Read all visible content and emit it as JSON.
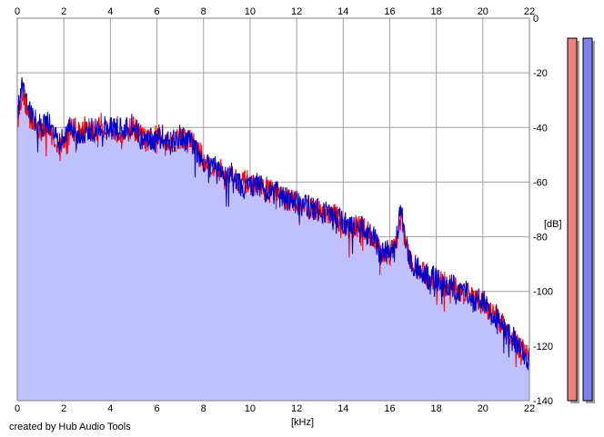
{
  "credit": "created by Hub Audio Tools",
  "colors": {
    "fill": "#c0c0fe",
    "left_channel": "#ff0000",
    "right_channel": "#0000cc",
    "grid": "#a0a0a0",
    "meter_left": "#f08080",
    "meter_right": "#8080f0"
  },
  "chart_data": {
    "type": "area",
    "xlabel": "[kHz]",
    "ylabel": "[dB]",
    "xlim": [
      0,
      22
    ],
    "ylim": [
      -140,
      0
    ],
    "x_ticks": [
      "0",
      "2",
      "4",
      "6",
      "8",
      "10",
      "12",
      "14",
      "16",
      "18",
      "20",
      "22"
    ],
    "y_ticks": [
      "0",
      "-20",
      "-40",
      "-60",
      "-80",
      "-100",
      "-120",
      "-140"
    ],
    "grid": true,
    "series": [
      {
        "color": "#ff0000",
        "x": [
          0,
          0.2,
          0.5,
          0.8,
          1.0,
          1.3,
          1.6,
          1.8,
          2.0,
          2.3,
          2.6,
          3.0,
          3.3,
          3.6,
          4.0,
          4.3,
          4.6,
          5.0,
          5.3,
          5.6,
          6.0,
          6.3,
          6.6,
          7.0,
          7.3,
          7.6,
          8.0,
          8.3,
          8.6,
          9.0,
          9.3,
          9.6,
          10.0,
          10.3,
          10.6,
          11.0,
          11.3,
          11.6,
          12.0,
          12.3,
          12.6,
          13.0,
          13.3,
          13.6,
          14.0,
          14.3,
          14.6,
          15.0,
          15.3,
          15.6,
          16.0,
          16.2,
          16.4,
          16.5,
          16.6,
          16.8,
          17.0,
          17.3,
          17.6,
          18.0,
          18.3,
          18.6,
          19.0,
          19.3,
          19.6,
          20.0,
          20.3,
          20.6,
          21.0,
          21.3,
          21.6,
          22.0
        ],
        "y": [
          -38,
          -27,
          -35,
          -40,
          -41,
          -39,
          -44,
          -47,
          -45,
          -40,
          -41,
          -40,
          -42,
          -39,
          -41,
          -40,
          -42,
          -40,
          -43,
          -45,
          -43,
          -44,
          -45,
          -44,
          -44,
          -46,
          -52,
          -54,
          -55,
          -57,
          -58,
          -60,
          -60,
          -62,
          -62,
          -63,
          -65,
          -66,
          -68,
          -68,
          -70,
          -70,
          -72,
          -72,
          -75,
          -76,
          -76,
          -78,
          -80,
          -86,
          -86,
          -84,
          -76,
          -72,
          -80,
          -86,
          -90,
          -93,
          -94,
          -96,
          -97,
          -98,
          -100,
          -101,
          -102,
          -104,
          -107,
          -110,
          -114,
          -117,
          -121,
          -124
        ]
      },
      {
        "color": "#0000cc",
        "x": [
          0,
          0.2,
          0.5,
          0.8,
          1.0,
          1.3,
          1.6,
          1.8,
          2.0,
          2.3,
          2.6,
          3.0,
          3.3,
          3.6,
          4.0,
          4.3,
          4.6,
          5.0,
          5.3,
          5.6,
          6.0,
          6.3,
          6.6,
          7.0,
          7.3,
          7.6,
          8.0,
          8.3,
          8.6,
          9.0,
          9.3,
          9.6,
          10.0,
          10.3,
          10.6,
          11.0,
          11.3,
          11.6,
          12.0,
          12.3,
          12.6,
          13.0,
          13.3,
          13.6,
          14.0,
          14.3,
          14.6,
          15.0,
          15.3,
          15.6,
          16.0,
          16.2,
          16.4,
          16.5,
          16.6,
          16.8,
          17.0,
          17.3,
          17.6,
          18.0,
          18.3,
          18.6,
          19.0,
          19.3,
          19.6,
          20.0,
          20.3,
          20.6,
          21.0,
          21.3,
          21.6,
          22.0
        ],
        "y": [
          -36,
          -22,
          -33,
          -38,
          -40,
          -38,
          -43,
          -46,
          -44,
          -40,
          -42,
          -41,
          -41,
          -40,
          -40,
          -41,
          -41,
          -39,
          -44,
          -44,
          -44,
          -43,
          -46,
          -43,
          -45,
          -47,
          -53,
          -55,
          -54,
          -58,
          -57,
          -61,
          -61,
          -61,
          -63,
          -64,
          -64,
          -67,
          -67,
          -69,
          -69,
          -71,
          -71,
          -73,
          -74,
          -77,
          -75,
          -79,
          -79,
          -87,
          -85,
          -85,
          -75,
          -68,
          -79,
          -87,
          -91,
          -92,
          -95,
          -95,
          -98,
          -97,
          -101,
          -100,
          -103,
          -103,
          -108,
          -109,
          -115,
          -116,
          -122,
          -125
        ]
      }
    ]
  },
  "meters": [
    {
      "channel": "L",
      "color": "#f08080",
      "level": 0.99
    },
    {
      "channel": "R",
      "color": "#8080f0",
      "level": 0.99
    }
  ]
}
